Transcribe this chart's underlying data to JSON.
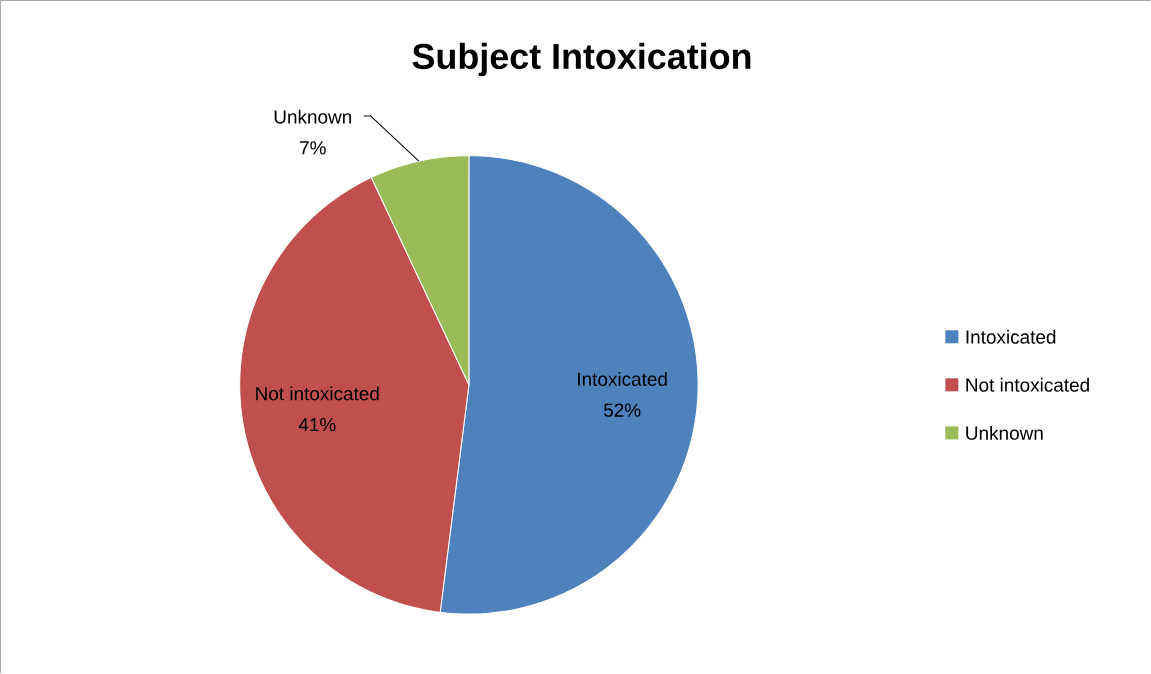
{
  "chart_data": {
    "type": "pie",
    "title": "Subject Intoxication",
    "categories": [
      "Intoxicated",
      "Not intoxicated",
      "Unknown"
    ],
    "values": [
      52,
      41,
      7
    ],
    "value_labels": [
      "52%",
      "41%",
      "7%"
    ],
    "colors": [
      "#4f81bd",
      "#c0504d",
      "#9bbb59"
    ],
    "legend": "right"
  }
}
